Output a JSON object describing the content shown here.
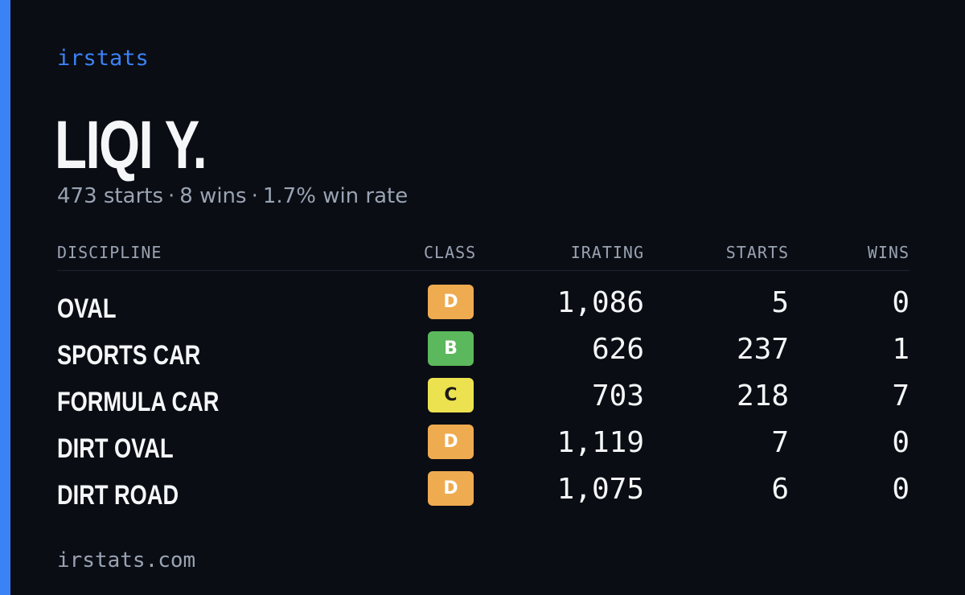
{
  "brand": "irstats",
  "driver": {
    "name": "LIQI Y.",
    "starts_text": "473 starts",
    "wins_text": "8 wins",
    "win_rate_text": "1.7% win rate",
    "separator": "·"
  },
  "table": {
    "headers": {
      "discipline": "DISCIPLINE",
      "class": "CLASS",
      "irating": "IRATING",
      "starts": "STARTS",
      "wins": "WINS"
    },
    "rows": [
      {
        "discipline": "OVAL",
        "class": "D",
        "irating": "1,086",
        "starts": "5",
        "wins": "0"
      },
      {
        "discipline": "SPORTS CAR",
        "class": "B",
        "irating": "626",
        "starts": "237",
        "wins": "1"
      },
      {
        "discipline": "FORMULA CAR",
        "class": "C",
        "irating": "703",
        "starts": "218",
        "wins": "7"
      },
      {
        "discipline": "DIRT OVAL",
        "class": "D",
        "irating": "1,119",
        "starts": "7",
        "wins": "0"
      },
      {
        "discipline": "DIRT ROAD",
        "class": "D",
        "irating": "1,075",
        "starts": "6",
        "wins": "0"
      }
    ]
  },
  "class_colors": {
    "B": {
      "bg": "#5cb85c",
      "fg": "#ffffff"
    },
    "C": {
      "bg": "#ece250",
      "fg": "#1a1a1a"
    },
    "D": {
      "bg": "#efab50",
      "fg": "#ffffff"
    }
  },
  "colors": {
    "background": "#0a0d14",
    "accent": "#3b82f6",
    "muted_text": "#9aa3b2",
    "primary_text": "#f5f6f8"
  },
  "footer": "irstats.com"
}
